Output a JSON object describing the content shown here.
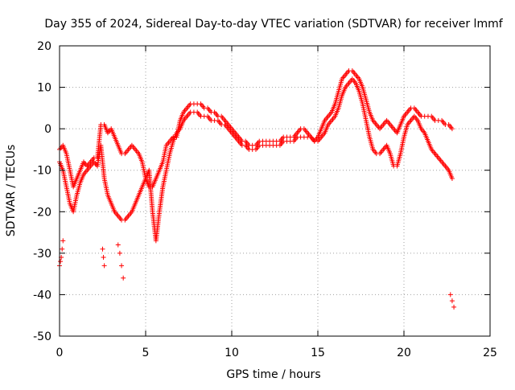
{
  "chart_data": {
    "type": "scatter",
    "title": "Day 355 of 2024, Sidereal Day-to-day VTEC variation (SDTVAR) for receiver lmmf",
    "xlabel": "GPS time / hours",
    "ylabel": "SDTVAR / TECUs",
    "xlim": [
      0,
      25
    ],
    "ylim": [
      -50,
      20
    ],
    "xticks": [
      0,
      5,
      10,
      15,
      20,
      25
    ],
    "yticks": [
      20,
      10,
      0,
      -10,
      -20,
      -30,
      -40,
      -50
    ],
    "grid": true,
    "marker": "+",
    "series": [
      {
        "name": "main-trace-upper",
        "color": "#ff0000",
        "x": [
          0.0,
          0.2,
          0.4,
          0.6,
          0.8,
          1.0,
          1.2,
          1.4,
          1.6,
          1.8,
          2.0,
          2.2,
          2.4,
          2.6,
          2.8,
          3.0,
          3.2,
          3.4,
          3.6,
          3.8,
          4.0,
          4.2,
          4.4,
          4.6,
          4.8,
          5.0,
          5.2,
          5.4,
          5.6,
          5.8,
          6.0,
          6.2,
          6.4,
          6.6,
          6.8,
          7.0,
          7.2,
          7.4,
          7.6,
          7.8,
          8.0,
          8.2,
          8.4,
          8.6,
          8.8,
          9.0,
          9.2,
          9.4,
          9.6,
          9.8,
          10.0,
          10.2,
          10.4,
          10.6,
          10.8,
          11.0,
          11.2,
          11.4,
          11.6,
          11.8,
          12.0,
          12.2,
          12.4,
          12.6,
          12.8,
          13.0,
          13.2,
          13.4,
          13.6,
          13.8,
          14.0,
          14.2,
          14.4,
          14.6,
          14.8,
          15.0,
          15.2,
          15.4,
          15.6,
          15.8,
          16.0,
          16.2,
          16.4,
          16.6,
          16.8,
          17.0,
          17.2,
          17.4,
          17.6,
          17.8,
          18.0,
          18.2,
          18.4,
          18.6,
          18.8,
          19.0,
          19.2,
          19.4,
          19.6,
          19.8,
          20.0,
          20.2,
          20.4,
          20.6,
          20.8,
          21.0,
          21.2,
          21.4,
          21.6,
          21.8,
          22.0,
          22.2,
          22.4,
          22.6,
          22.8
        ],
        "y": [
          -5,
          -4,
          -6,
          -10,
          -14,
          -12,
          -10,
          -8,
          -9,
          -8,
          -7,
          -7,
          1,
          1,
          -1,
          0,
          -2,
          -4,
          -6,
          -6,
          -5,
          -4,
          -5,
          -6,
          -8,
          -12,
          -14,
          -14,
          -12,
          -10,
          -8,
          -4,
          -3,
          -2,
          -2,
          2,
          4,
          5,
          6,
          6,
          6,
          6,
          5,
          5,
          4,
          4,
          3,
          3,
          2,
          1,
          0,
          -1,
          -2,
          -3,
          -3,
          -4,
          -4,
          -4,
          -3,
          -3,
          -3,
          -3,
          -3,
          -3,
          -3,
          -2,
          -2,
          -2,
          -2,
          -1,
          0,
          0,
          -1,
          -2,
          -3,
          -2,
          0,
          2,
          3,
          4,
          6,
          9,
          12,
          13,
          14,
          14,
          13,
          12,
          10,
          7,
          4,
          2,
          1,
          0,
          1,
          2,
          1,
          0,
          -1,
          1,
          3,
          4,
          5,
          5,
          4,
          3,
          3,
          3,
          3,
          2,
          2,
          2,
          1,
          1,
          0
        ]
      },
      {
        "name": "main-trace-lower",
        "color": "#ff0000",
        "x": [
          0.0,
          0.2,
          0.4,
          0.6,
          0.8,
          1.0,
          1.2,
          1.4,
          1.6,
          1.8,
          2.0,
          2.2,
          2.4,
          2.6,
          2.8,
          3.0,
          3.2,
          3.4,
          3.6,
          3.8,
          4.0,
          4.2,
          4.4,
          4.6,
          4.8,
          5.0,
          5.2,
          5.4,
          5.6,
          5.8,
          6.0,
          6.2,
          6.4,
          6.6,
          6.8,
          7.0,
          7.2,
          7.4,
          7.6,
          7.8,
          8.0,
          8.2,
          8.4,
          8.6,
          8.8,
          9.0,
          9.2,
          9.4,
          9.6,
          9.8,
          10.0,
          10.2,
          10.4,
          10.6,
          10.8,
          11.0,
          11.2,
          11.4,
          11.6,
          11.8,
          12.0,
          12.2,
          12.4,
          12.6,
          12.8,
          13.0,
          13.2,
          13.4,
          13.6,
          13.8,
          14.0,
          14.2,
          14.4,
          14.6,
          14.8,
          15.0,
          15.2,
          15.4,
          15.6,
          15.8,
          16.0,
          16.2,
          16.4,
          16.6,
          16.8,
          17.0,
          17.2,
          17.4,
          17.6,
          17.8,
          18.0,
          18.2,
          18.4,
          18.6,
          18.8,
          19.0,
          19.2,
          19.4,
          19.6,
          19.8,
          20.0,
          20.2,
          20.4,
          20.6,
          20.8,
          21.0,
          21.2,
          21.4,
          21.6,
          21.8,
          22.0,
          22.2,
          22.4,
          22.6,
          22.8
        ],
        "y": [
          -8,
          -10,
          -14,
          -18,
          -20,
          -16,
          -13,
          -11,
          -10,
          -9,
          -8,
          -9,
          -4,
          -12,
          -16,
          -18,
          -20,
          -21,
          -22,
          -22,
          -21,
          -20,
          -18,
          -16,
          -14,
          -12,
          -10,
          -20,
          -27,
          -20,
          -14,
          -10,
          -6,
          -3,
          -1,
          0,
          2,
          3,
          4,
          4,
          4,
          3,
          3,
          3,
          2,
          2,
          2,
          1,
          1,
          0,
          -1,
          -2,
          -3,
          -4,
          -4,
          -5,
          -5,
          -5,
          -4,
          -4,
          -4,
          -4,
          -4,
          -4,
          -4,
          -3,
          -3,
          -3,
          -3,
          -2,
          -2,
          -2,
          -2,
          -2,
          -3,
          -3,
          -2,
          -1,
          1,
          2,
          3,
          5,
          8,
          10,
          11,
          12,
          11,
          9,
          6,
          2,
          -2,
          -5,
          -6,
          -6,
          -5,
          -4,
          -6,
          -9,
          -9,
          -6,
          -2,
          1,
          2,
          3,
          2,
          0,
          -1,
          -3,
          -5,
          -6,
          -7,
          -8,
          -9,
          -10,
          -12
        ]
      },
      {
        "name": "outlier-cluster-1",
        "color": "#ff0000",
        "x": [
          0.0,
          0.05,
          0.1,
          0.15,
          0.2
        ],
        "y": [
          -33,
          -32,
          -31,
          -29,
          -27
        ]
      },
      {
        "name": "outlier-cluster-2",
        "color": "#ff0000",
        "x": [
          2.5,
          2.55,
          2.6
        ],
        "y": [
          -29,
          -31,
          -33
        ]
      },
      {
        "name": "outlier-cluster-3",
        "color": "#ff0000",
        "x": [
          3.4,
          3.5,
          3.6,
          3.7
        ],
        "y": [
          -28,
          -30,
          -33,
          -36
        ]
      },
      {
        "name": "outlier-cluster-4",
        "color": "#ff0000",
        "x": [
          22.7,
          22.8,
          22.9
        ],
        "y": [
          -40,
          -41.5,
          -43
        ]
      }
    ]
  }
}
